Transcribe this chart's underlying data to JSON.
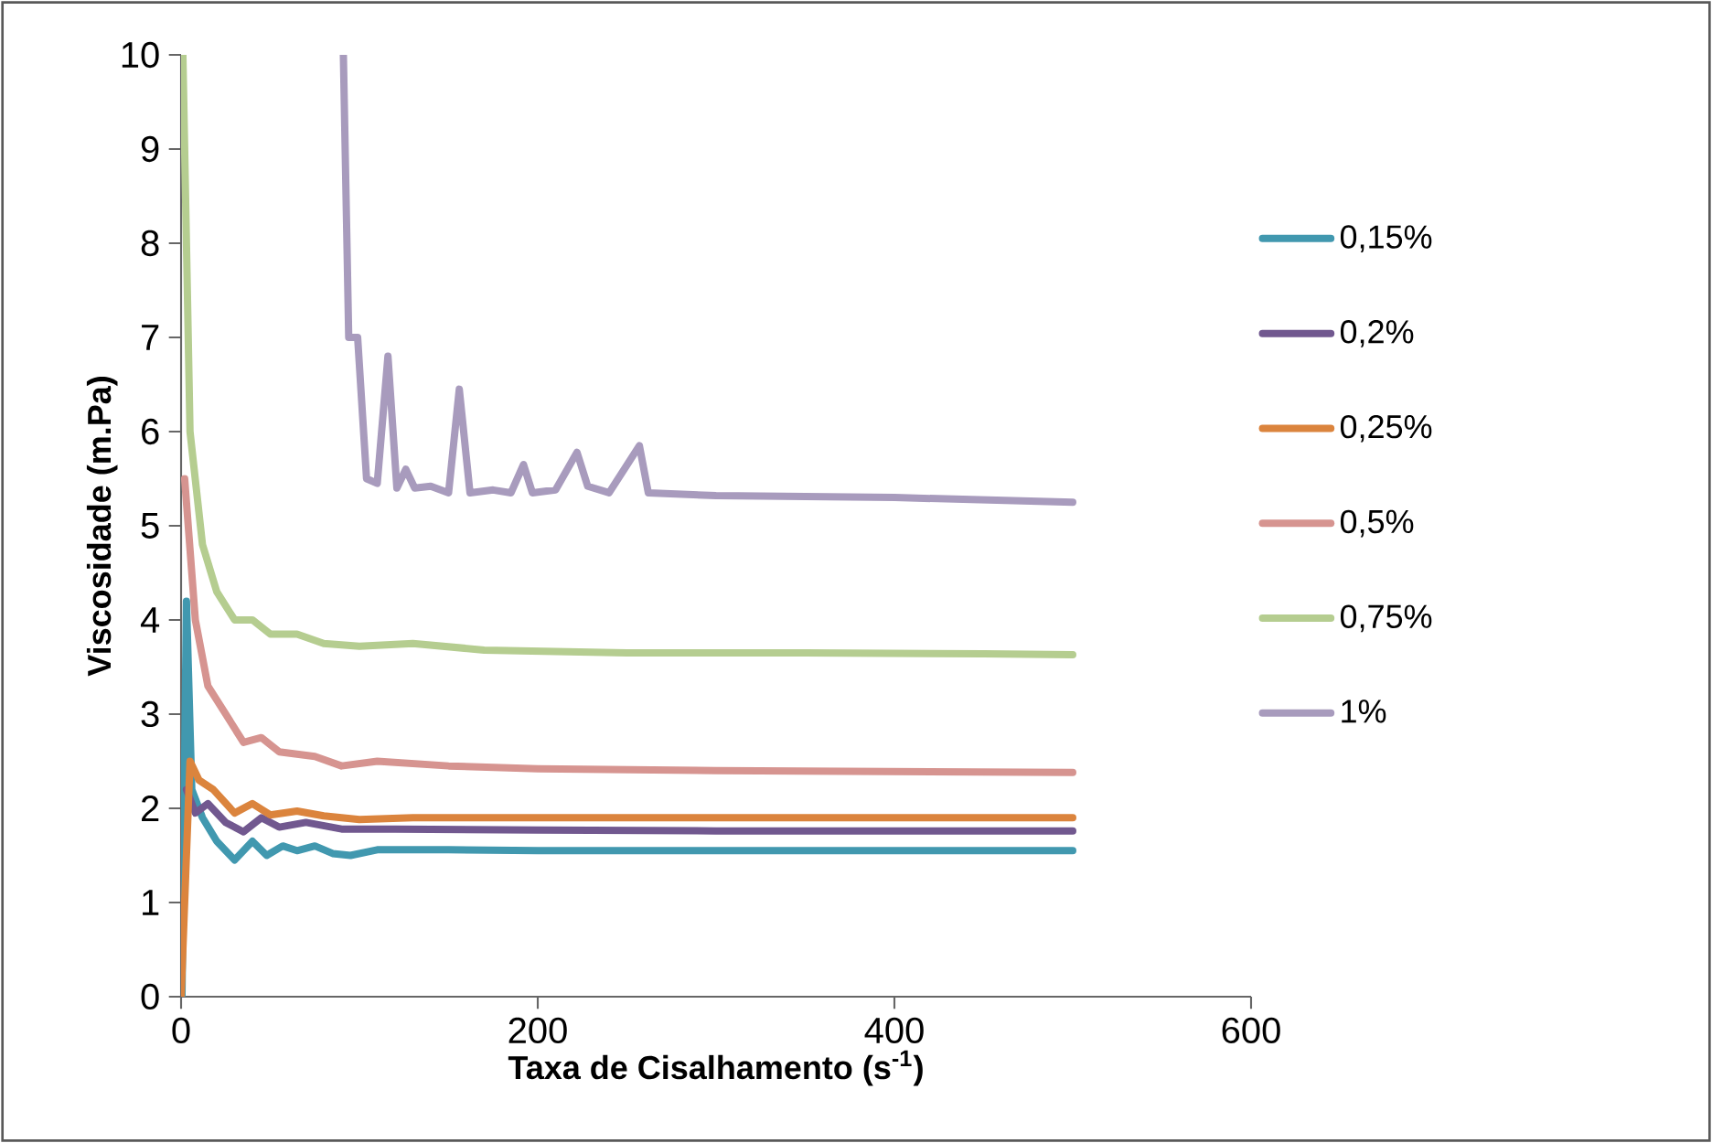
{
  "chart_data": {
    "type": "line",
    "xlabel": "Taxa de Cisalhamento (s$^{-1}$)",
    "ylabel": "Viscosidade (m.Pa)",
    "xlim": [
      0,
      600
    ],
    "xticks": [
      0,
      200,
      400,
      600
    ],
    "ylim": [
      0,
      10
    ],
    "yticks": [
      0,
      1,
      2,
      3,
      4,
      5,
      6,
      7,
      8,
      9,
      10
    ],
    "legend": "right",
    "series": [
      {
        "name": "0,15%",
        "color": "#4198af",
        "x": [
          0.5,
          3,
          6,
          12,
          20,
          30,
          40,
          48,
          57,
          65,
          75,
          85,
          95,
          110,
          150,
          200,
          300,
          400,
          500
        ],
        "values": [
          0,
          4.2,
          2.2,
          1.9,
          1.65,
          1.45,
          1.65,
          1.5,
          1.6,
          1.55,
          1.6,
          1.52,
          1.5,
          1.56,
          1.56,
          1.55,
          1.55,
          1.55,
          1.55
        ]
      },
      {
        "name": "0,2%",
        "color": "#71588f",
        "x": [
          3,
          8,
          15,
          25,
          35,
          45,
          55,
          70,
          90,
          120,
          200,
          300,
          500
        ],
        "values": [
          2.2,
          1.95,
          2.05,
          1.85,
          1.75,
          1.9,
          1.8,
          1.85,
          1.78,
          1.78,
          1.77,
          1.76,
          1.76
        ]
      },
      {
        "name": "0,25%",
        "color": "#db843d",
        "x": [
          0,
          5,
          10,
          18,
          30,
          40,
          50,
          65,
          80,
          100,
          130,
          200,
          300,
          500
        ],
        "values": [
          0,
          2.5,
          2.3,
          2.2,
          1.95,
          2.05,
          1.93,
          1.97,
          1.92,
          1.88,
          1.9,
          1.9,
          1.9,
          1.9
        ]
      },
      {
        "name": "0,5%",
        "color": "#d69490",
        "x": [
          2,
          8,
          15,
          25,
          35,
          45,
          55,
          75,
          90,
          110,
          150,
          200,
          300,
          500
        ],
        "values": [
          5.5,
          4,
          3.3,
          3.0,
          2.7,
          2.75,
          2.6,
          2.55,
          2.45,
          2.5,
          2.45,
          2.42,
          2.4,
          2.38
        ]
      },
      {
        "name": "0,75%",
        "color": "#b5cd90",
        "x": [
          1,
          5,
          12,
          20,
          30,
          40,
          50,
          65,
          80,
          100,
          130,
          170,
          250,
          350,
          450,
          500
        ],
        "values": [
          10,
          6,
          4.8,
          4.3,
          4.0,
          4.0,
          3.85,
          3.85,
          3.75,
          3.72,
          3.75,
          3.68,
          3.65,
          3.65,
          3.64,
          3.63
        ]
      },
      {
        "name": "1%",
        "color": "#a89bbd",
        "x": [
          91,
          94,
          99,
          104,
          110,
          116,
          121,
          126,
          131,
          140,
          150,
          156,
          162,
          175,
          185,
          192,
          197,
          210,
          222,
          228,
          240,
          257,
          262,
          300,
          400,
          500
        ],
        "values": [
          10,
          7.0,
          7.0,
          5.5,
          5.45,
          6.8,
          5.4,
          5.6,
          5.4,
          5.42,
          5.35,
          6.45,
          5.35,
          5.38,
          5.35,
          5.65,
          5.35,
          5.38,
          5.78,
          5.42,
          5.35,
          5.85,
          5.35,
          5.32,
          5.3,
          5.25
        ]
      }
    ]
  }
}
